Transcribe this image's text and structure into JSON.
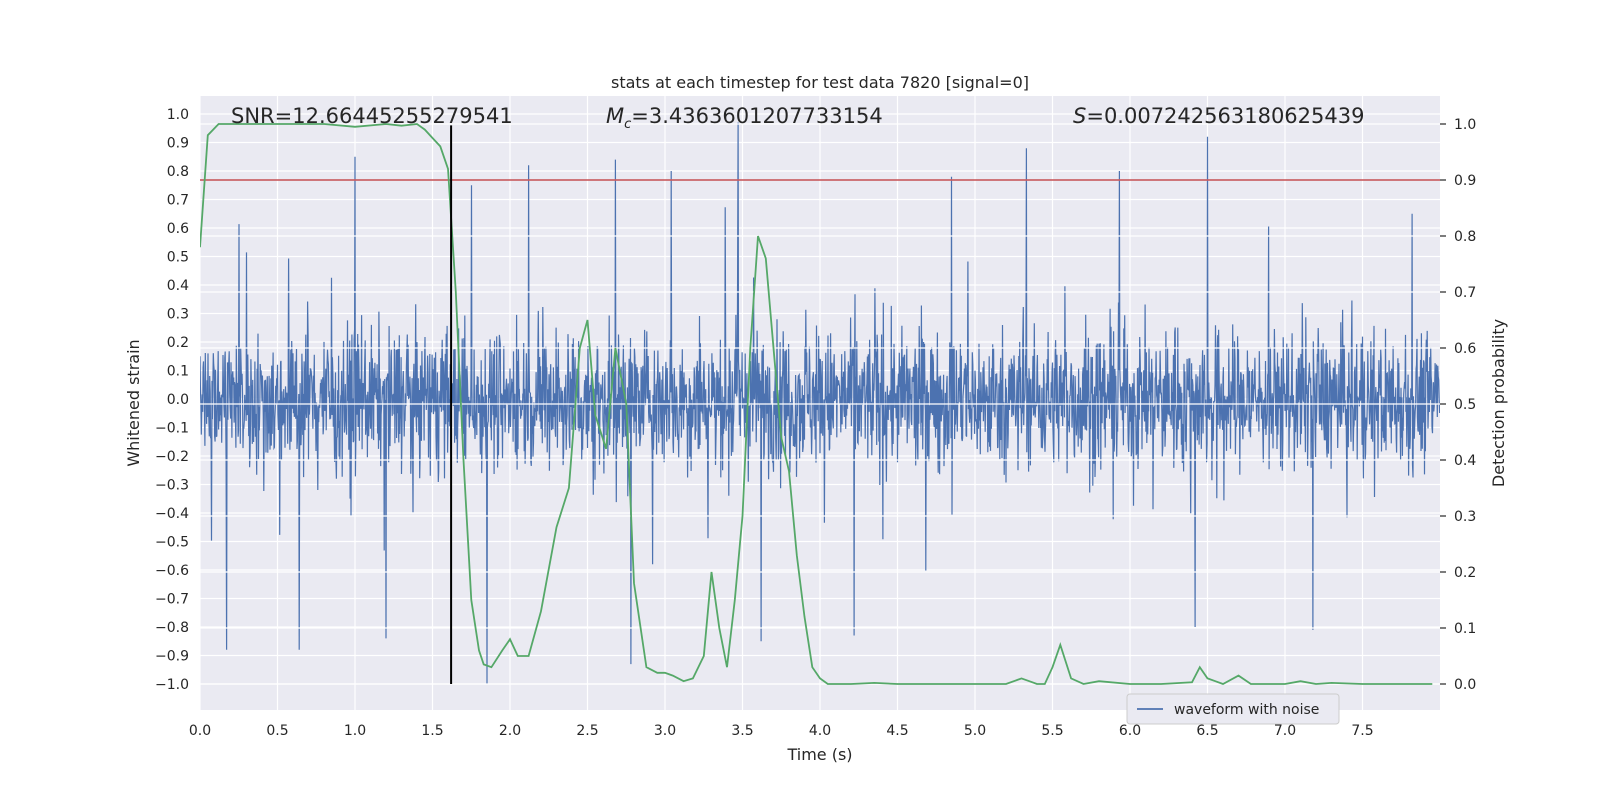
{
  "chart_data": {
    "type": "line",
    "title": "stats at each timestep for test data 7820 [signal=0]",
    "xlabel": "Time (s)",
    "ylabel_left": "Whitened strain",
    "ylabel_right": "Detection probability",
    "xlim": [
      0,
      8.0
    ],
    "ylim_left": [
      -1.1,
      1.05
    ],
    "ylim_right": [
      -0.05,
      1.03
    ],
    "x_ticks": [
      0.0,
      0.5,
      1.0,
      1.5,
      2.0,
      2.5,
      3.0,
      3.5,
      4.0,
      4.5,
      5.0,
      5.5,
      6.0,
      6.5,
      7.0,
      7.5
    ],
    "x_tick_labels": [
      "0.0",
      "0.5",
      "1.0",
      "1.5",
      "2.0",
      "2.5",
      "3.0",
      "3.5",
      "4.0",
      "4.5",
      "5.0",
      "5.5",
      "6.0",
      "6.5",
      "7.0",
      "7.5"
    ],
    "y_left_ticks": [
      1.0,
      0.9,
      0.8,
      0.7,
      0.6,
      0.5,
      0.4,
      0.3,
      0.2,
      0.1,
      0.0,
      -0.1,
      -0.2,
      -0.3,
      -0.4,
      -0.5,
      -0.6,
      -0.7,
      -0.8,
      -0.9,
      -1.0
    ],
    "y_left_tick_labels": [
      "1.0",
      "0.9",
      "0.8",
      "0.7",
      "0.6",
      "0.5",
      "0.4",
      "0.3",
      "0.2",
      "0.1",
      "0.0",
      "−0.1",
      "−0.2",
      "−0.3",
      "−0.4",
      "−0.5",
      "−0.6",
      "−0.7",
      "−0.8",
      "−0.9",
      "−1.0"
    ],
    "y_right_ticks": [
      0.0,
      0.1,
      0.2,
      0.3,
      0.4,
      0.5,
      0.6,
      0.7,
      0.8,
      0.9,
      1.0
    ],
    "y_right_tick_labels": [
      "0.0",
      "0.1",
      "0.2",
      "0.3",
      "0.4",
      "0.5",
      "0.6",
      "0.7",
      "0.8",
      "0.9",
      "1.0"
    ],
    "annotations": {
      "snr": "SNR=12.66445255279541",
      "mc_symbol": "M",
      "mc_sub": "c",
      "mc_value": "=3.4363601207733154",
      "s_symbol": "S",
      "s_value": "=0.007242563180625439"
    },
    "threshold": 0.9,
    "trigger_time": 1.62,
    "waveform": {
      "name": "waveform with noise",
      "color": "#4c72b0",
      "peaks": [
        {
          "t": 1.0,
          "v": 0.85
        },
        {
          "t": 1.85,
          "v": -1.0
        },
        {
          "t": 2.12,
          "v": 0.82
        },
        {
          "t": 2.68,
          "v": 0.84
        },
        {
          "t": 2.78,
          "v": -0.93
        },
        {
          "t": 3.04,
          "v": 0.8
        },
        {
          "t": 3.47,
          "v": 0.97
        },
        {
          "t": 3.62,
          "v": -0.85
        },
        {
          "t": 4.22,
          "v": -0.83
        },
        {
          "t": 4.85,
          "v": 0.78
        },
        {
          "t": 5.93,
          "v": 0.8
        },
        {
          "t": 6.42,
          "v": -0.8
        },
        {
          "t": 6.5,
          "v": 0.92
        },
        {
          "t": 7.18,
          "v": -0.81
        },
        {
          "t": 7.82,
          "v": 0.65
        },
        {
          "t": 0.17,
          "v": -0.88
        },
        {
          "t": 0.64,
          "v": -0.88
        },
        {
          "t": 1.2,
          "v": -0.84
        },
        {
          "t": 1.75,
          "v": 0.75
        },
        {
          "t": 5.33,
          "v": 0.88
        }
      ]
    },
    "probability": {
      "name": "detection probability",
      "color": "#55a868",
      "x": [
        0.0,
        0.05,
        0.12,
        0.2,
        0.4,
        0.6,
        0.8,
        1.0,
        1.2,
        1.3,
        1.4,
        1.45,
        1.5,
        1.55,
        1.6,
        1.65,
        1.7,
        1.75,
        1.8,
        1.83,
        1.88,
        1.95,
        2.0,
        2.05,
        2.12,
        2.2,
        2.3,
        2.38,
        2.45,
        2.5,
        2.55,
        2.62,
        2.68,
        2.75,
        2.8,
        2.88,
        2.95,
        3.0,
        3.05,
        3.12,
        3.18,
        3.25,
        3.3,
        3.35,
        3.4,
        3.45,
        3.5,
        3.55,
        3.6,
        3.65,
        3.7,
        3.75,
        3.8,
        3.85,
        3.9,
        3.95,
        4.0,
        4.05,
        4.1,
        4.2,
        4.35,
        4.5,
        4.7,
        4.95,
        5.2,
        5.3,
        5.35,
        5.4,
        5.45,
        5.5,
        5.55,
        5.62,
        5.7,
        5.8,
        6.0,
        6.2,
        6.4,
        6.45,
        6.5,
        6.55,
        6.6,
        6.7,
        6.78,
        6.85,
        7.0,
        7.1,
        7.2,
        7.3,
        7.5,
        7.7,
        7.95
      ],
      "y": [
        0.78,
        0.98,
        1.0,
        1.0,
        1.0,
        1.0,
        1.0,
        0.995,
        1.0,
        0.997,
        1.0,
        0.99,
        0.975,
        0.96,
        0.92,
        0.7,
        0.4,
        0.15,
        0.06,
        0.035,
        0.03,
        0.06,
        0.08,
        0.05,
        0.05,
        0.13,
        0.28,
        0.35,
        0.6,
        0.65,
        0.48,
        0.42,
        0.6,
        0.5,
        0.18,
        0.03,
        0.02,
        0.02,
        0.015,
        0.005,
        0.01,
        0.05,
        0.2,
        0.1,
        0.03,
        0.15,
        0.3,
        0.6,
        0.8,
        0.76,
        0.6,
        0.44,
        0.38,
        0.23,
        0.12,
        0.03,
        0.01,
        0.0,
        0.0,
        0.0,
        0.002,
        0.0,
        0.0,
        0.0,
        0.0,
        0.01,
        0.005,
        0.0,
        0.0,
        0.03,
        0.07,
        0.01,
        0.0,
        0.005,
        0.0,
        0.0,
        0.003,
        0.03,
        0.01,
        0.005,
        0.0,
        0.015,
        0.0,
        0.0,
        0.0,
        0.005,
        0.0,
        0.002,
        0.0,
        0.0,
        0.0
      ]
    }
  }
}
